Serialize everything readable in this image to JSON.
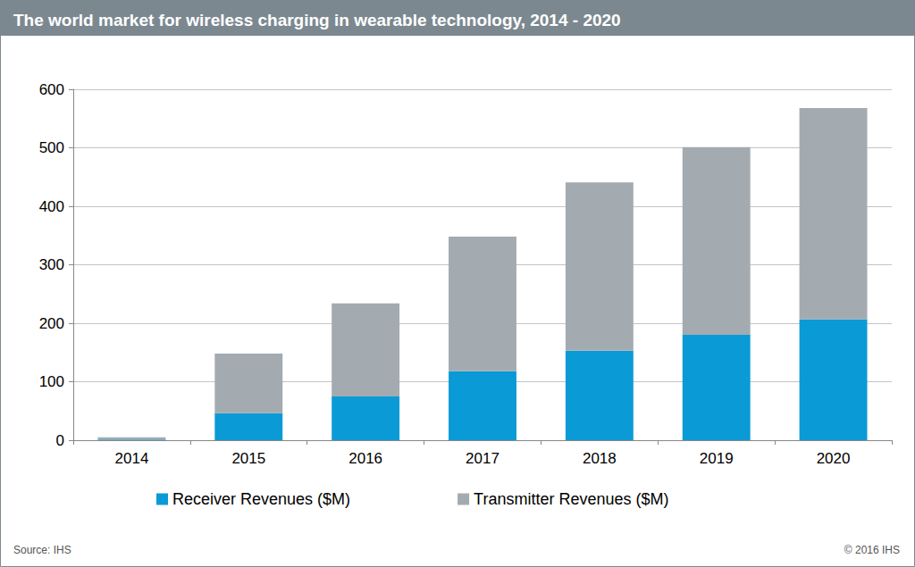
{
  "chart_data": {
    "type": "bar",
    "title": "The world market for wireless charging in wearable technology, 2014 - 2020",
    "source": "Source: IHS",
    "credit": "© 2016 IHS",
    "categories": [
      "2014",
      "2015",
      "2016",
      "2017",
      "2018",
      "2019",
      "2020"
    ],
    "series": [
      {
        "name": "Receiver Revenues ($M)",
        "color": "#0a9ad6",
        "values": [
          1,
          46,
          75,
          118,
          153,
          180,
          207
        ]
      },
      {
        "name": "Transmitter Revenues ($M)",
        "color": "#a3abb1",
        "values": [
          4,
          102,
          159,
          230,
          288,
          321,
          361
        ]
      }
    ],
    "stacked": true,
    "ylim": [
      0,
      600
    ],
    "yticks": [
      0,
      100,
      200,
      300,
      400,
      500,
      600
    ],
    "grid": true,
    "legend": "bottom"
  }
}
